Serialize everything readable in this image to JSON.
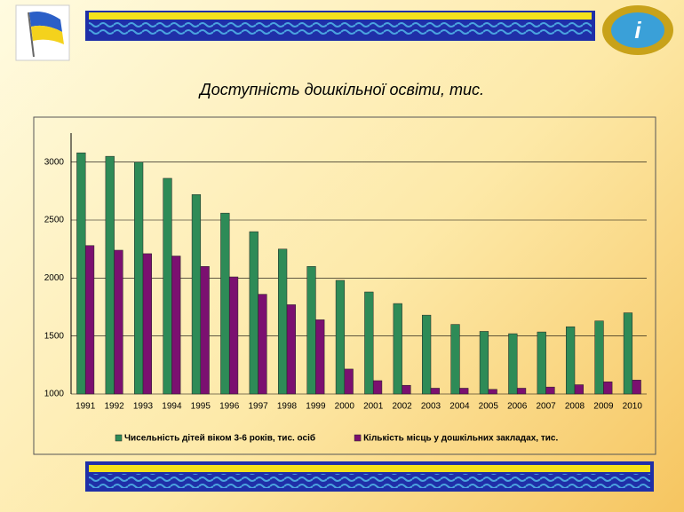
{
  "chart_data": {
    "type": "bar",
    "title": "Доступність дошкільної освіти, тис.",
    "categories": [
      "1991",
      "1992",
      "1993",
      "1994",
      "1995",
      "1996",
      "1997",
      "1998",
      "1999",
      "2000",
      "2001",
      "2002",
      "2003",
      "2004",
      "2005",
      "2006",
      "2007",
      "2008",
      "2009",
      "2010"
    ],
    "series": [
      {
        "name": "Чисельність дітей віком 3-6 років, тис. осіб",
        "color": "#2e8b57",
        "values": [
          3080,
          3050,
          3000,
          2860,
          2720,
          2560,
          2400,
          2250,
          2100,
          1980,
          1880,
          1780,
          1680,
          1600,
          1540,
          1520,
          1535,
          1580,
          1630,
          1700
        ]
      },
      {
        "name": "Кількість місць у дошкільних закладах, тис.",
        "color": "#7b1070",
        "values": [
          2280,
          2240,
          2210,
          2190,
          2100,
          2010,
          1860,
          1770,
          1640,
          1215,
          1115,
          1075,
          1050,
          1050,
          1040,
          1050,
          1060,
          1080,
          1105,
          1120
        ]
      }
    ],
    "ylim": [
      1000,
      3250
    ],
    "yticks": [
      1000,
      1500,
      2000,
      2500,
      3000
    ],
    "grid": true,
    "legend": "bottom"
  }
}
